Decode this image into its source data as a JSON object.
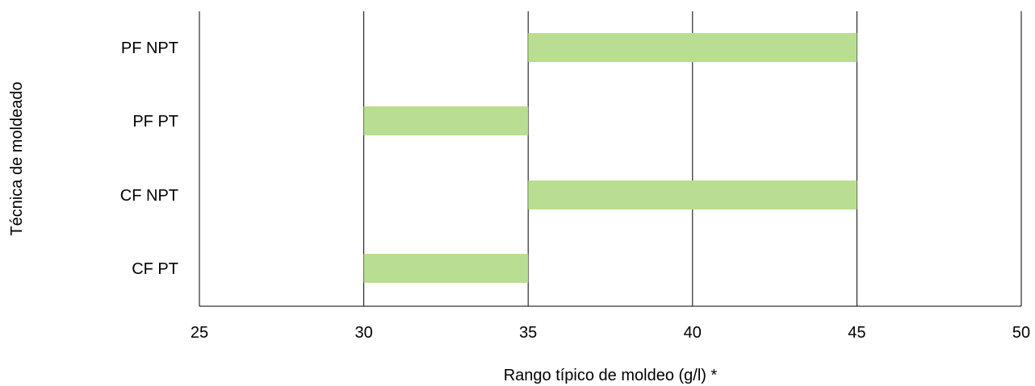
{
  "chart_data": {
    "type": "bar",
    "orientation": "horizontal-range",
    "categories": [
      "PF NPT",
      "PF PT",
      "CF NPT",
      "CF PT"
    ],
    "ranges": [
      [
        35,
        45
      ],
      [
        30,
        35
      ],
      [
        35,
        45
      ],
      [
        30,
        35
      ]
    ],
    "xlabel": "Rango típico de moldeo (g/l) *",
    "ylabel": "Técnica de moldeado",
    "xlim": [
      25,
      50
    ],
    "xticks": [
      "25",
      "30",
      "35",
      "40",
      "45",
      "50"
    ],
    "grid": "vertical",
    "bar_color": "#bade91"
  }
}
